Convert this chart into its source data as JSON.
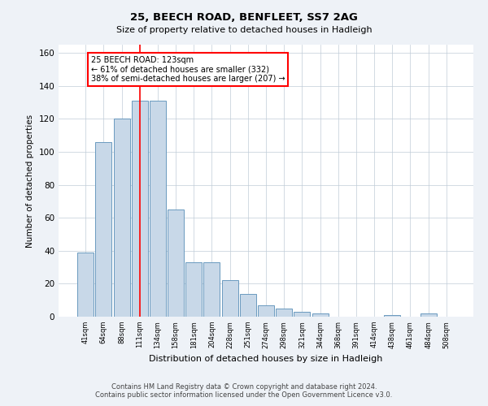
{
  "title1": "25, BEECH ROAD, BENFLEET, SS7 2AG",
  "title2": "Size of property relative to detached houses in Hadleigh",
  "xlabel": "Distribution of detached houses by size in Hadleigh",
  "ylabel": "Number of detached properties",
  "categories": [
    "41sqm",
    "64sqm",
    "88sqm",
    "111sqm",
    "134sqm",
    "158sqm",
    "181sqm",
    "204sqm",
    "228sqm",
    "251sqm",
    "274sqm",
    "298sqm",
    "321sqm",
    "344sqm",
    "368sqm",
    "391sqm",
    "414sqm",
    "438sqm",
    "461sqm",
    "484sqm",
    "508sqm"
  ],
  "values": [
    39,
    106,
    120,
    131,
    131,
    65,
    33,
    33,
    22,
    14,
    7,
    5,
    3,
    2,
    0,
    0,
    0,
    1,
    0,
    2,
    0
  ],
  "bar_color": "#c8d8e8",
  "bar_edge_color": "#6a9abf",
  "red_line_x": 3.0,
  "annotation_text": "25 BEECH ROAD: 123sqm\n← 61% of detached houses are smaller (332)\n38% of semi-detached houses are larger (207) →",
  "annotation_box_color": "white",
  "annotation_box_edgecolor": "red",
  "vline_color": "red",
  "ylim": [
    0,
    165
  ],
  "yticks": [
    0,
    20,
    40,
    60,
    80,
    100,
    120,
    140,
    160
  ],
  "footer1": "Contains HM Land Registry data © Crown copyright and database right 2024.",
  "footer2": "Contains public sector information licensed under the Open Government Licence v3.0.",
  "bg_color": "#eef2f7",
  "plot_bg_color": "#ffffff",
  "grid_color": "#c0ccd8"
}
